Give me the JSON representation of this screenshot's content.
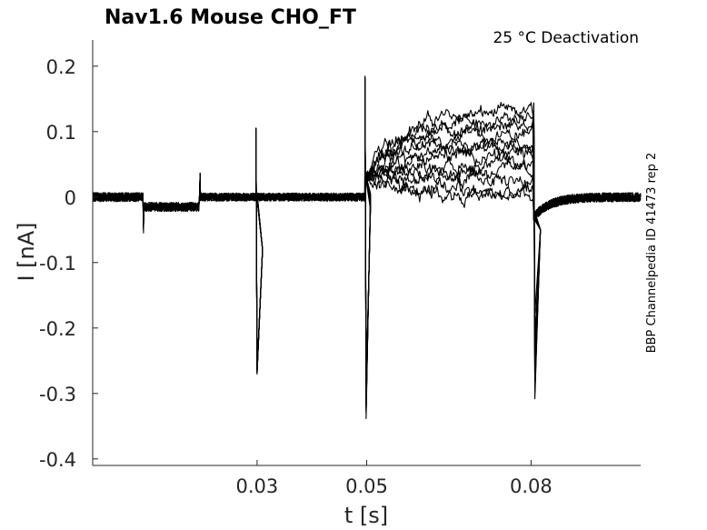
{
  "chart_data": {
    "type": "line",
    "title": "Nav1.6  Mouse  CHO_FT",
    "condition": "25 °C  Deactivation",
    "xlabel": "t [s]",
    "ylabel": "I [nA]",
    "side_label": "BBP Channelpedia ID 41473 rep 2",
    "xlim": [
      0,
      0.1
    ],
    "ylim": [
      -0.41,
      0.24
    ],
    "xticks": [
      0.03,
      0.05,
      0.08
    ],
    "xtick_labels": [
      "0.03",
      "0.05",
      "0.08"
    ],
    "yticks": [
      0.2,
      0.1,
      0,
      -0.1,
      -0.2,
      -0.3,
      -0.4
    ],
    "ytick_labels": [
      "0.2",
      "0.1",
      "0",
      "-0.1",
      "-0.2",
      "-0.3",
      "-0.4"
    ],
    "grid": false,
    "legend": "none",
    "protocol": {
      "events": [
        {
          "t": 0.0092,
          "spike": -0.048
        },
        {
          "t": 0.0195,
          "spike": 0.032
        },
        {
          "t": 0.0298,
          "spike_up": 0.107,
          "spike_down": -0.272
        },
        {
          "t": 0.0497,
          "spike_up": 0.185,
          "spike_down": -0.348
        },
        {
          "t": 0.0805,
          "spike_up": 0.145,
          "spike_down": -0.32
        }
      ],
      "step_level": -0.015,
      "baseline": 0.0
    },
    "series": [
      {
        "test_level": 0.13
      },
      {
        "test_level": 0.12
      },
      {
        "test_level": 0.11
      },
      {
        "test_level": 0.095
      },
      {
        "test_level": 0.085
      },
      {
        "test_level": 0.075
      },
      {
        "test_level": 0.065
      },
      {
        "test_level": 0.05
      },
      {
        "test_level": 0.04
      },
      {
        "test_level": 0.025
      },
      {
        "test_level": 0.012
      },
      {
        "test_level": 0.002
      }
    ]
  }
}
